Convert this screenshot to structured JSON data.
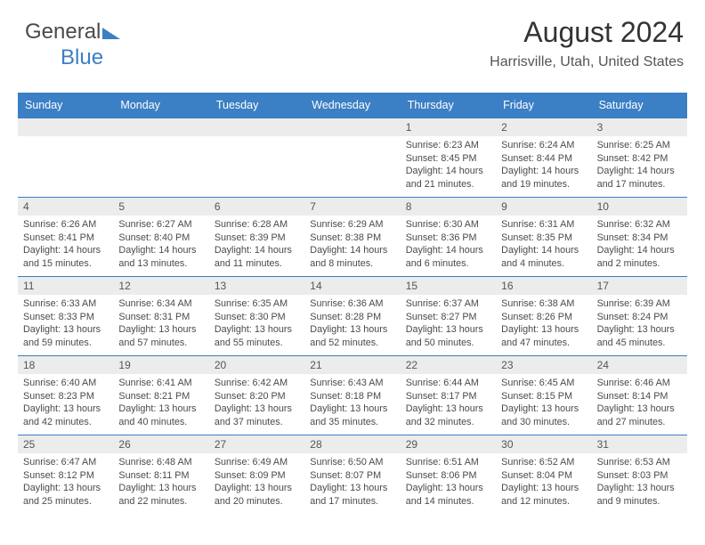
{
  "logo": {
    "part1": "General",
    "part2": "Blue"
  },
  "header": {
    "month_title": "August 2024",
    "location": "Harrisville, Utah, United States"
  },
  "colors": {
    "accent": "#3b7fc4",
    "header_bg": "#3b7fc4",
    "header_text": "#ffffff",
    "daynum_bg": "#ececec",
    "text": "#333333",
    "page_bg": "#ffffff"
  },
  "calendar": {
    "day_headers": [
      "Sunday",
      "Monday",
      "Tuesday",
      "Wednesday",
      "Thursday",
      "Friday",
      "Saturday"
    ],
    "weeks": [
      [
        {
          "n": "",
          "sr": "",
          "ss": "",
          "dl1": "",
          "dl2": ""
        },
        {
          "n": "",
          "sr": "",
          "ss": "",
          "dl1": "",
          "dl2": ""
        },
        {
          "n": "",
          "sr": "",
          "ss": "",
          "dl1": "",
          "dl2": ""
        },
        {
          "n": "",
          "sr": "",
          "ss": "",
          "dl1": "",
          "dl2": ""
        },
        {
          "n": "1",
          "sr": "Sunrise: 6:23 AM",
          "ss": "Sunset: 8:45 PM",
          "dl1": "Daylight: 14 hours",
          "dl2": "and 21 minutes."
        },
        {
          "n": "2",
          "sr": "Sunrise: 6:24 AM",
          "ss": "Sunset: 8:44 PM",
          "dl1": "Daylight: 14 hours",
          "dl2": "and 19 minutes."
        },
        {
          "n": "3",
          "sr": "Sunrise: 6:25 AM",
          "ss": "Sunset: 8:42 PM",
          "dl1": "Daylight: 14 hours",
          "dl2": "and 17 minutes."
        }
      ],
      [
        {
          "n": "4",
          "sr": "Sunrise: 6:26 AM",
          "ss": "Sunset: 8:41 PM",
          "dl1": "Daylight: 14 hours",
          "dl2": "and 15 minutes."
        },
        {
          "n": "5",
          "sr": "Sunrise: 6:27 AM",
          "ss": "Sunset: 8:40 PM",
          "dl1": "Daylight: 14 hours",
          "dl2": "and 13 minutes."
        },
        {
          "n": "6",
          "sr": "Sunrise: 6:28 AM",
          "ss": "Sunset: 8:39 PM",
          "dl1": "Daylight: 14 hours",
          "dl2": "and 11 minutes."
        },
        {
          "n": "7",
          "sr": "Sunrise: 6:29 AM",
          "ss": "Sunset: 8:38 PM",
          "dl1": "Daylight: 14 hours",
          "dl2": "and 8 minutes."
        },
        {
          "n": "8",
          "sr": "Sunrise: 6:30 AM",
          "ss": "Sunset: 8:36 PM",
          "dl1": "Daylight: 14 hours",
          "dl2": "and 6 minutes."
        },
        {
          "n": "9",
          "sr": "Sunrise: 6:31 AM",
          "ss": "Sunset: 8:35 PM",
          "dl1": "Daylight: 14 hours",
          "dl2": "and 4 minutes."
        },
        {
          "n": "10",
          "sr": "Sunrise: 6:32 AM",
          "ss": "Sunset: 8:34 PM",
          "dl1": "Daylight: 14 hours",
          "dl2": "and 2 minutes."
        }
      ],
      [
        {
          "n": "11",
          "sr": "Sunrise: 6:33 AM",
          "ss": "Sunset: 8:33 PM",
          "dl1": "Daylight: 13 hours",
          "dl2": "and 59 minutes."
        },
        {
          "n": "12",
          "sr": "Sunrise: 6:34 AM",
          "ss": "Sunset: 8:31 PM",
          "dl1": "Daylight: 13 hours",
          "dl2": "and 57 minutes."
        },
        {
          "n": "13",
          "sr": "Sunrise: 6:35 AM",
          "ss": "Sunset: 8:30 PM",
          "dl1": "Daylight: 13 hours",
          "dl2": "and 55 minutes."
        },
        {
          "n": "14",
          "sr": "Sunrise: 6:36 AM",
          "ss": "Sunset: 8:28 PM",
          "dl1": "Daylight: 13 hours",
          "dl2": "and 52 minutes."
        },
        {
          "n": "15",
          "sr": "Sunrise: 6:37 AM",
          "ss": "Sunset: 8:27 PM",
          "dl1": "Daylight: 13 hours",
          "dl2": "and 50 minutes."
        },
        {
          "n": "16",
          "sr": "Sunrise: 6:38 AM",
          "ss": "Sunset: 8:26 PM",
          "dl1": "Daylight: 13 hours",
          "dl2": "and 47 minutes."
        },
        {
          "n": "17",
          "sr": "Sunrise: 6:39 AM",
          "ss": "Sunset: 8:24 PM",
          "dl1": "Daylight: 13 hours",
          "dl2": "and 45 minutes."
        }
      ],
      [
        {
          "n": "18",
          "sr": "Sunrise: 6:40 AM",
          "ss": "Sunset: 8:23 PM",
          "dl1": "Daylight: 13 hours",
          "dl2": "and 42 minutes."
        },
        {
          "n": "19",
          "sr": "Sunrise: 6:41 AM",
          "ss": "Sunset: 8:21 PM",
          "dl1": "Daylight: 13 hours",
          "dl2": "and 40 minutes."
        },
        {
          "n": "20",
          "sr": "Sunrise: 6:42 AM",
          "ss": "Sunset: 8:20 PM",
          "dl1": "Daylight: 13 hours",
          "dl2": "and 37 minutes."
        },
        {
          "n": "21",
          "sr": "Sunrise: 6:43 AM",
          "ss": "Sunset: 8:18 PM",
          "dl1": "Daylight: 13 hours",
          "dl2": "and 35 minutes."
        },
        {
          "n": "22",
          "sr": "Sunrise: 6:44 AM",
          "ss": "Sunset: 8:17 PM",
          "dl1": "Daylight: 13 hours",
          "dl2": "and 32 minutes."
        },
        {
          "n": "23",
          "sr": "Sunrise: 6:45 AM",
          "ss": "Sunset: 8:15 PM",
          "dl1": "Daylight: 13 hours",
          "dl2": "and 30 minutes."
        },
        {
          "n": "24",
          "sr": "Sunrise: 6:46 AM",
          "ss": "Sunset: 8:14 PM",
          "dl1": "Daylight: 13 hours",
          "dl2": "and 27 minutes."
        }
      ],
      [
        {
          "n": "25",
          "sr": "Sunrise: 6:47 AM",
          "ss": "Sunset: 8:12 PM",
          "dl1": "Daylight: 13 hours",
          "dl2": "and 25 minutes."
        },
        {
          "n": "26",
          "sr": "Sunrise: 6:48 AM",
          "ss": "Sunset: 8:11 PM",
          "dl1": "Daylight: 13 hours",
          "dl2": "and 22 minutes."
        },
        {
          "n": "27",
          "sr": "Sunrise: 6:49 AM",
          "ss": "Sunset: 8:09 PM",
          "dl1": "Daylight: 13 hours",
          "dl2": "and 20 minutes."
        },
        {
          "n": "28",
          "sr": "Sunrise: 6:50 AM",
          "ss": "Sunset: 8:07 PM",
          "dl1": "Daylight: 13 hours",
          "dl2": "and 17 minutes."
        },
        {
          "n": "29",
          "sr": "Sunrise: 6:51 AM",
          "ss": "Sunset: 8:06 PM",
          "dl1": "Daylight: 13 hours",
          "dl2": "and 14 minutes."
        },
        {
          "n": "30",
          "sr": "Sunrise: 6:52 AM",
          "ss": "Sunset: 8:04 PM",
          "dl1": "Daylight: 13 hours",
          "dl2": "and 12 minutes."
        },
        {
          "n": "31",
          "sr": "Sunrise: 6:53 AM",
          "ss": "Sunset: 8:03 PM",
          "dl1": "Daylight: 13 hours",
          "dl2": "and 9 minutes."
        }
      ]
    ]
  }
}
